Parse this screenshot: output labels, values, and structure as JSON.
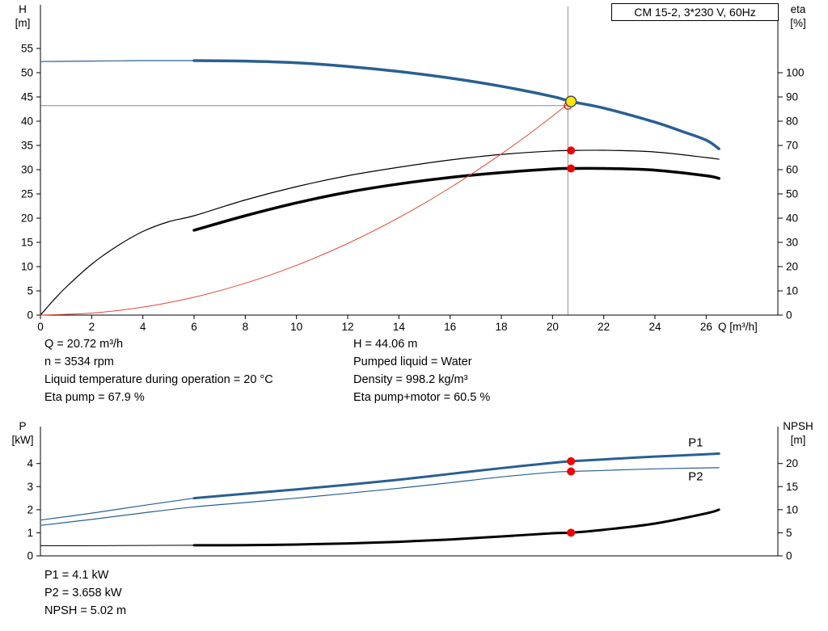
{
  "header": {
    "model": "CM 15-2, 3*230 V, 60Hz"
  },
  "results": {
    "top_left": [
      "Q = 20.72 m³/h",
      "n = 3534 rpm",
      "Liquid temperature during operation = 20 °C",
      "Eta pump = 67.9 %"
    ],
    "top_right": [
      "H = 44.06 m",
      "Pumped liquid = Water",
      "Density = 998.2 kg/m³",
      "Eta pump+motor = 60.5 %"
    ],
    "bottom": [
      "P1 = 4.1 kW",
      "P2 = 3.658 kW",
      "NPSH = 5.02 m"
    ]
  },
  "colors": {
    "curve_blue": "#2a5f91",
    "curve_black": "#000000",
    "system_red": "#e0473a",
    "dot_red": "#ee0000",
    "duty_yellow": "#ffe600",
    "crosshair_gray": "#8c8c8c"
  },
  "chart_data": [
    {
      "name": "qh-eta-chart",
      "type": "line",
      "title": "CM 15-2, 3*230 V, 60Hz",
      "xlabel": "Q [m³/h]",
      "ylabel_left": [
        "H",
        "[m]"
      ],
      "ylabel_right": [
        "eta",
        "[%]"
      ],
      "xlim": [
        0,
        28.8
      ],
      "ylim_left": [
        0,
        64
      ],
      "ylim_right": [
        0,
        128
      ],
      "xticks": [
        0,
        2,
        4,
        6,
        8,
        10,
        12,
        14,
        16,
        18,
        20,
        22,
        24,
        26
      ],
      "yticks_left": [
        0,
        5,
        10,
        15,
        20,
        25,
        30,
        35,
        40,
        45,
        50,
        55
      ],
      "yticks_right": [
        0,
        10,
        20,
        30,
        40,
        50,
        60,
        70,
        80,
        90,
        100
      ],
      "grid": false,
      "crosshair": {
        "q": 20.6,
        "h": 43.2
      },
      "series": [
        {
          "name": "head-curve-lead-in",
          "axis": "left",
          "color": "#2a5f91",
          "width": 1.2,
          "x": [
            0,
            1,
            2,
            3,
            4,
            5,
            6
          ],
          "y": [
            52.3,
            52.35,
            52.4,
            52.45,
            52.5,
            52.5,
            52.5
          ]
        },
        {
          "name": "head-curve",
          "axis": "left",
          "color": "#2a5f91",
          "width": 3.5,
          "x": [
            6,
            8,
            10,
            12,
            14,
            16,
            18,
            20,
            20.72,
            22,
            24,
            25,
            26,
            26.5
          ],
          "y": [
            52.5,
            52.4,
            52.05,
            51.3,
            50.25,
            48.9,
            47.2,
            45.1,
            44.06,
            42.7,
            39.8,
            38.0,
            36.1,
            34.3
          ]
        },
        {
          "name": "eta-pump-curve",
          "axis": "right",
          "color": "#000000",
          "width": 1.2,
          "x": [
            0,
            0.5,
            1,
            2,
            3,
            4,
            5,
            6,
            8,
            10,
            12,
            14,
            16,
            18,
            20,
            20.72,
            22,
            24,
            26,
            26.5
          ],
          "y": [
            0,
            6,
            11.5,
            21,
            28.5,
            34.5,
            38.5,
            41,
            47.5,
            53,
            57.5,
            61,
            64,
            66.3,
            67.7,
            67.9,
            68,
            67.3,
            65,
            64.3
          ]
        },
        {
          "name": "eta-pump-motor-curve",
          "axis": "right",
          "color": "#000000",
          "width": 3.5,
          "x": [
            6,
            8,
            10,
            12,
            14,
            16,
            18,
            20,
            20.72,
            22,
            24,
            26,
            26.5
          ],
          "y": [
            35,
            41,
            46.3,
            50.7,
            54.1,
            56.8,
            58.8,
            60.3,
            60.5,
            60.5,
            59.8,
            57.5,
            56.4
          ]
        },
        {
          "name": "system-curve",
          "axis": "left",
          "color": "#e0473a",
          "width": 1,
          "x": [
            0,
            2,
            4,
            6,
            8,
            10,
            12,
            14,
            16,
            18,
            19.5,
            20.72
          ],
          "y": [
            0,
            0.41,
            1.64,
            3.69,
            6.57,
            10.26,
            14.77,
            20.11,
            26.27,
            33.24,
            39.0,
            44.06
          ]
        }
      ],
      "markers": [
        {
          "name": "requested-duty-ring",
          "x": 20.6,
          "y": 43.2,
          "axis": "left",
          "r": 4.5,
          "fill": "none",
          "stroke": "#ee0000",
          "sw": 1.2
        },
        {
          "name": "duty-point",
          "x": 20.72,
          "y": 44.06,
          "axis": "left",
          "r": 6.5,
          "fill": "#ffe600",
          "stroke": "#4d4d4d",
          "sw": 1.5
        },
        {
          "name": "eta-pump-point",
          "x": 20.72,
          "y": 67.9,
          "axis": "right",
          "r": 5,
          "fill": "#ee0000",
          "stroke": "none",
          "sw": 0
        },
        {
          "name": "eta-pump-motor-point",
          "x": 20.72,
          "y": 60.5,
          "axis": "right",
          "r": 5,
          "fill": "#ee0000",
          "stroke": "none",
          "sw": 0
        }
      ]
    },
    {
      "name": "power-npsh-chart",
      "type": "line",
      "title": "",
      "xlabel": "",
      "ylabel_left": [
        "P",
        "[kW]"
      ],
      "ylabel_right": [
        "NPSH",
        "[m]"
      ],
      "xlim": [
        0,
        28.8
      ],
      "ylim_left": [
        0,
        5.6
      ],
      "ylim_right": [
        0,
        28
      ],
      "xticks": [],
      "yticks_left": [
        0,
        1,
        2,
        3,
        4
      ],
      "yticks_right": [
        0,
        5,
        10,
        15,
        20
      ],
      "grid": false,
      "series": [
        {
          "name": "p1-lead-in",
          "axis": "left",
          "color": "#2a5f91",
          "width": 1.2,
          "x": [
            0,
            2,
            4,
            6
          ],
          "y": [
            1.55,
            1.85,
            2.18,
            2.5
          ]
        },
        {
          "name": "p1-curve",
          "axis": "left",
          "color": "#2a5f91",
          "width": 3,
          "x": [
            6,
            8,
            10,
            12,
            14,
            16,
            18,
            20,
            20.72,
            22,
            24,
            26,
            26.5
          ],
          "y": [
            2.5,
            2.69,
            2.88,
            3.08,
            3.3,
            3.55,
            3.8,
            4.03,
            4.1,
            4.18,
            4.3,
            4.4,
            4.43
          ]
        },
        {
          "name": "p2-curve",
          "axis": "left",
          "color": "#2a5f91",
          "width": 1.2,
          "x": [
            0,
            2,
            4,
            6,
            8,
            10,
            12,
            14,
            16,
            18,
            20,
            20.72,
            22,
            24,
            26,
            26.5
          ],
          "y": [
            1.32,
            1.58,
            1.86,
            2.12,
            2.31,
            2.5,
            2.71,
            2.93,
            3.17,
            3.42,
            3.62,
            3.658,
            3.7,
            3.77,
            3.81,
            3.82
          ]
        },
        {
          "name": "npsh-lead-in",
          "axis": "right",
          "color": "#000000",
          "width": 1,
          "x": [
            0,
            2,
            4,
            6
          ],
          "y": [
            2.2,
            2.2,
            2.25,
            2.3
          ]
        },
        {
          "name": "npsh-curve",
          "axis": "right",
          "color": "#000000",
          "width": 3,
          "x": [
            6,
            8,
            10,
            12,
            14,
            16,
            18,
            20,
            20.72,
            22,
            24,
            26,
            26.5
          ],
          "y": [
            2.3,
            2.32,
            2.45,
            2.7,
            3.05,
            3.55,
            4.2,
            4.9,
            5.02,
            5.65,
            7.0,
            9.2,
            10.0
          ]
        }
      ],
      "markers": [
        {
          "name": "p1-point",
          "x": 20.72,
          "y": 4.1,
          "axis": "left",
          "r": 5,
          "fill": "#ee0000",
          "stroke": "none",
          "sw": 0
        },
        {
          "name": "p2-point",
          "x": 20.72,
          "y": 3.658,
          "axis": "left",
          "r": 5,
          "fill": "#ee0000",
          "stroke": "none",
          "sw": 0
        },
        {
          "name": "npsh-point",
          "x": 20.72,
          "y": 5.02,
          "axis": "right",
          "r": 5,
          "fill": "#ee0000",
          "stroke": "none",
          "sw": 0
        }
      ],
      "series_labels": [
        {
          "text": "P1",
          "x": 25.3,
          "y": 4.75,
          "axis": "left",
          "color": "#2a5f91"
        },
        {
          "text": "P2",
          "x": 25.3,
          "y": 3.28,
          "axis": "left",
          "color": "#2a5f91"
        }
      ]
    }
  ]
}
